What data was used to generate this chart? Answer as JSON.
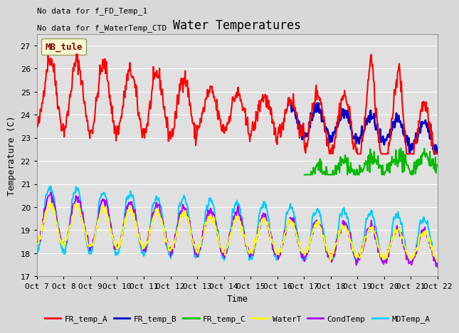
{
  "title": "Water Temperatures",
  "ylabel": "Temperature (C)",
  "xlabel": "Time",
  "annotation_line1": "No data for f_FD_Temp_1",
  "annotation_line2": "No data for f_WaterTemp_CTD",
  "legend_label": "MB_tule",
  "ylim": [
    17.0,
    27.5
  ],
  "yticks": [
    17.0,
    18.0,
    19.0,
    20.0,
    21.0,
    22.0,
    23.0,
    24.0,
    25.0,
    26.0,
    27.0
  ],
  "xtick_labels": [
    "Oct 7",
    "Oct 8",
    "Oct 9",
    "Oct 10",
    "Oct 11",
    "Oct 12",
    "Oct 13",
    "Oct 14",
    "Oct 15",
    "Oct 16",
    "Oct 17",
    "Oct 18",
    "Oct 19",
    "Oct 20",
    "Oct 21",
    "Oct 22"
  ],
  "series_colors": {
    "FR_temp_A": "#ff0000",
    "FR_temp_B": "#0000cc",
    "FR_temp_C": "#00bb00",
    "WaterT": "#ffff00",
    "CondTemp": "#aa00ff",
    "MDTemp_A": "#00ccff"
  },
  "line_widths": {
    "FR_temp_A": 1.5,
    "FR_temp_B": 2.0,
    "FR_temp_C": 1.5,
    "WaterT": 1.5,
    "CondTemp": 1.5,
    "MDTemp_A": 1.5
  },
  "bg_color": "#d8d8d8",
  "plot_bg_color": "#e0e0e0",
  "grid_color": "#ffffff",
  "title_fontsize": 12,
  "label_fontsize": 9,
  "tick_fontsize": 8,
  "annot_fontsize": 8
}
